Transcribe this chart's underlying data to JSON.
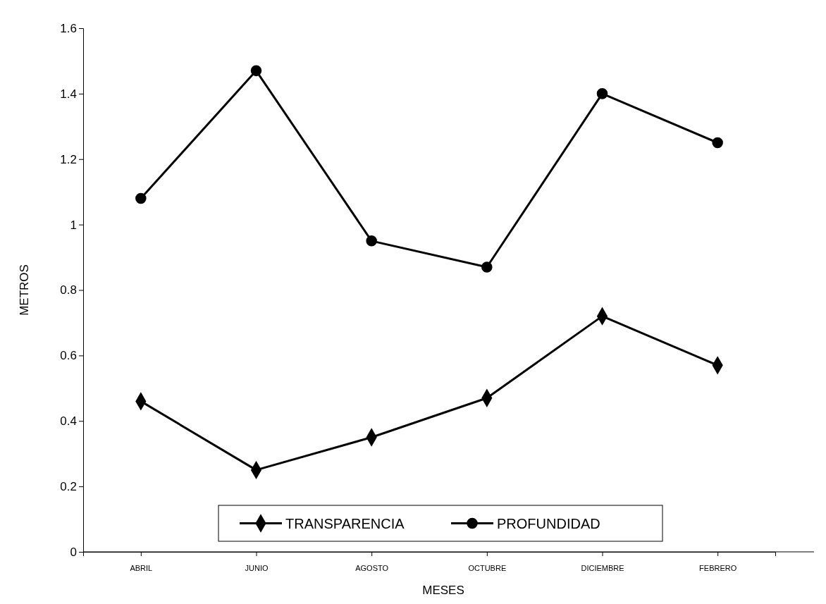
{
  "chart_data": {
    "type": "line",
    "xlabel": "MESES",
    "ylabel": "METROS",
    "categories": [
      "ABRIL",
      "JUNIO",
      "AGOSTO",
      "OCTUBRE",
      "DICIEMBRE",
      "FEBRERO"
    ],
    "series": [
      {
        "name": "TRANSPARENCIA",
        "color": "#000000",
        "marker": "diamond",
        "values": [
          0.46,
          0.25,
          0.35,
          0.47,
          0.72,
          0.57
        ]
      },
      {
        "name": "PROFUNDIDAD",
        "color": "#000000",
        "marker": "circle",
        "values": [
          1.08,
          1.47,
          0.95,
          0.87,
          1.4,
          1.25
        ]
      }
    ],
    "ylim": [
      0,
      1.6
    ],
    "yticks": [
      0,
      0.2,
      0.4,
      0.6,
      0.8,
      1,
      1.2,
      1.4,
      1.6
    ],
    "grid": false,
    "legend": "bottom",
    "line_style": "solid"
  }
}
